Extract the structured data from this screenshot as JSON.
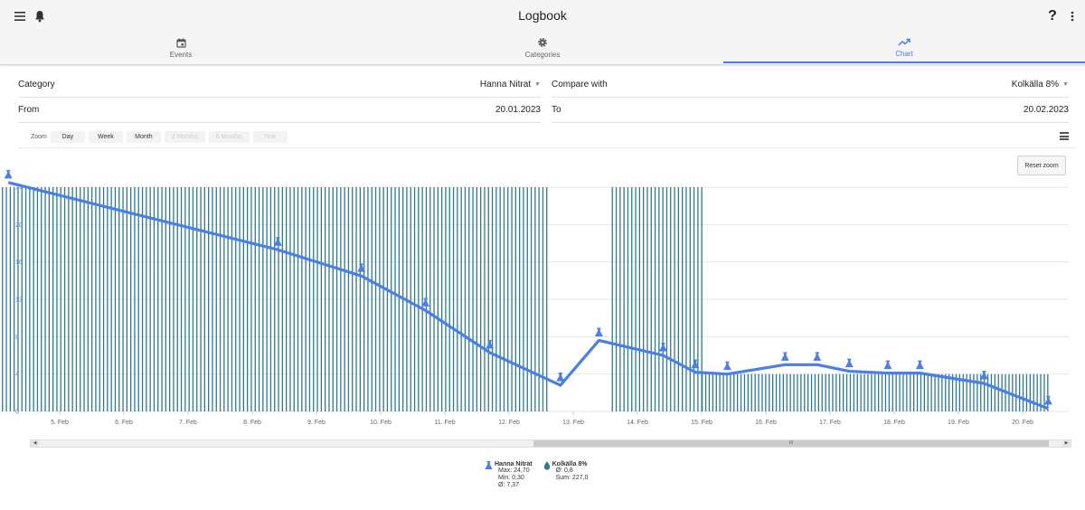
{
  "app": {
    "title": "Logbook",
    "help_label": "?"
  },
  "tabs": [
    {
      "label": "Events",
      "icon": "calendar-icon",
      "active": false
    },
    {
      "label": "Categories",
      "icon": "gear-icon",
      "active": false
    },
    {
      "label": "Chart",
      "icon": "trending-up-icon",
      "active": true
    }
  ],
  "form": {
    "category_label": "Category",
    "category_value": "Hanna Nitrat",
    "compare_label": "Compare with",
    "compare_value": "Kolkälla 8%",
    "from_label": "From",
    "from_value": "20.01.2023",
    "to_label": "To",
    "to_value": "20.02.2023"
  },
  "zoom": {
    "label": "Zoom",
    "buttons": [
      {
        "label": "Day",
        "enabled": true
      },
      {
        "label": "Week",
        "enabled": true
      },
      {
        "label": "Month",
        "enabled": true
      },
      {
        "label": "3 Months",
        "enabled": false
      },
      {
        "label": "6 Months",
        "enabled": false
      },
      {
        "label": "Year",
        "enabled": false
      }
    ]
  },
  "reset_zoom_label": "Reset zoom",
  "scrollbar": {
    "thumb_label": "III"
  },
  "colors": {
    "accent": "#4a7ee8",
    "line": "#4a7ee8",
    "bars": "#2c7b8c"
  },
  "chart_data": {
    "type": "line",
    "x_tick_labels": [
      "5. Feb",
      "6. Feb",
      "7. Feb",
      "8. Feb",
      "9. Feb",
      "10. Feb",
      "11. Feb",
      "12. Feb",
      "13. Feb",
      "14. Feb",
      "15. Feb",
      "16. Feb",
      "17. Feb",
      "18. Feb",
      "19. Feb",
      "20. Feb"
    ],
    "ylim": [
      0,
      25
    ],
    "y_ticks": [
      0,
      4,
      8,
      12,
      16,
      20,
      24
    ],
    "series": [
      {
        "name": "Hanna Nitrat",
        "type": "line",
        "color": "#4a7ee8",
        "points": [
          {
            "x": 4.2,
            "y": 24.5
          },
          {
            "x": 8.4,
            "y": 17.3
          },
          {
            "x": 9.7,
            "y": 14.5
          },
          {
            "x": 10.7,
            "y": 10.8
          },
          {
            "x": 11.7,
            "y": 6.3
          },
          {
            "x": 12.8,
            "y": 2.8
          },
          {
            "x": 13.4,
            "y": 7.6
          },
          {
            "x": 14.4,
            "y": 6.0
          },
          {
            "x": 14.9,
            "y": 4.2
          },
          {
            "x": 15.4,
            "y": 4.0
          },
          {
            "x": 16.3,
            "y": 5.0
          },
          {
            "x": 16.8,
            "y": 5.0
          },
          {
            "x": 17.3,
            "y": 4.3
          },
          {
            "x": 17.9,
            "y": 4.1
          },
          {
            "x": 18.4,
            "y": 4.1
          },
          {
            "x": 19.4,
            "y": 3.0
          },
          {
            "x": 20.4,
            "y": 0.3
          }
        ]
      },
      {
        "name": "Kolkälla 8%",
        "type": "bar",
        "color": "#2c7b8c",
        "segments": [
          {
            "x_start": 4.1,
            "x_end": 12.6,
            "value": 24
          },
          {
            "x_start": 13.6,
            "x_end": 15.0,
            "value": 24
          },
          {
            "x_start": 15.0,
            "x_end": 20.4,
            "value": 4
          }
        ]
      }
    ]
  },
  "legend": [
    {
      "name": "Hanna Nitrat",
      "icon": "flask-icon",
      "stats": [
        "Max: 24,70",
        "Min: 0,30",
        "Ø: 7,37"
      ]
    },
    {
      "name": "Kolkälla 8%",
      "icon": "drop-icon",
      "stats": [
        "Ø: 0,8",
        "Sum: 227,0"
      ]
    }
  ]
}
